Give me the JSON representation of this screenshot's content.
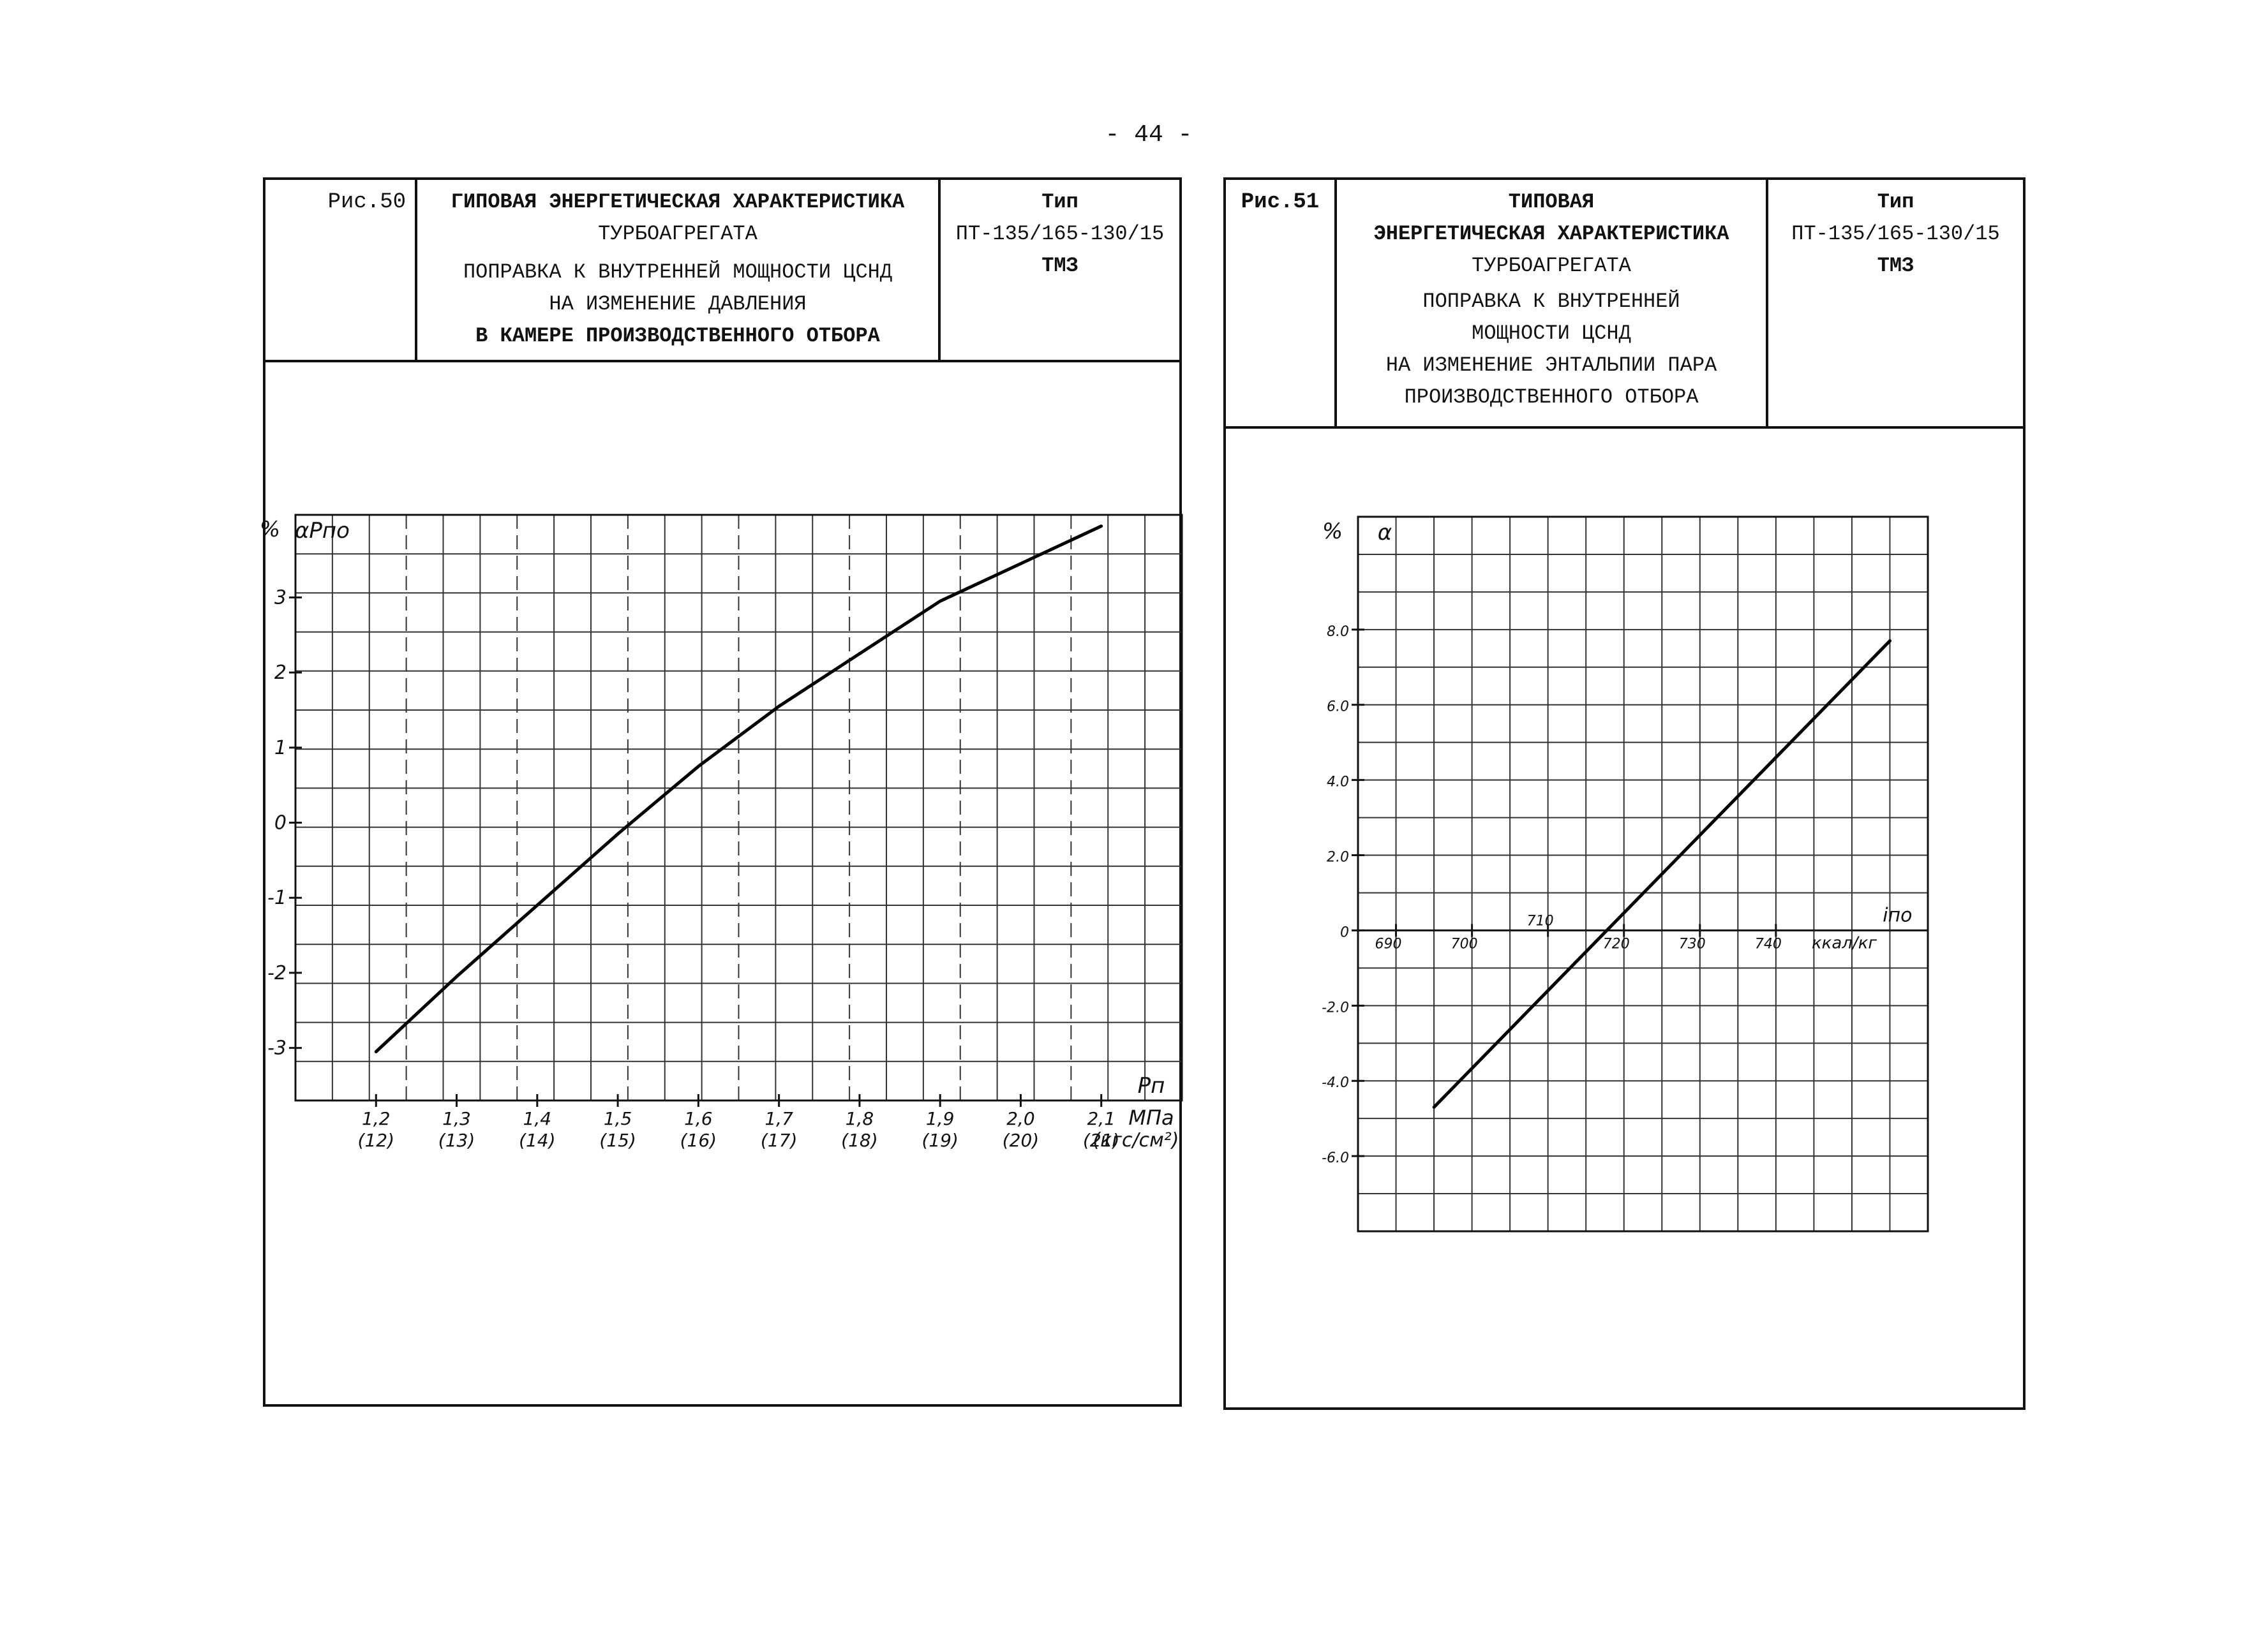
{
  "page": {
    "number": "- 44 -"
  },
  "figures": [
    {
      "fig_label": "Рис.50",
      "title_lines": [
        "ГИПОВАЯ ЭНЕРГЕТИЧЕСКАЯ ХАРАКТЕРИСТИКА",
        "ТУРБОАГРЕГАТА"
      ],
      "subtitle_lines": [
        "ПОПРАВКА К ВНУТРЕННЕЙ МОЩНОСТИ ЦСНД",
        "НА ИЗМЕНЕНИЕ ДАВЛЕНИЯ",
        "В КАМЕРЕ ПРОИЗВОДСТВЕННОГО ОТБОРА"
      ],
      "type_lines": [
        "Тип",
        "ПТ-135/165-130/15",
        "ТМЗ"
      ]
    },
    {
      "fig_label": "Рис.51",
      "title_lines": [
        "ТИПОВАЯ",
        "ЭНЕРГЕТИЧЕСКАЯ ХАРАКТЕРИСТИКА",
        "ТУРБОАГРЕГАТА"
      ],
      "subtitle_lines": [
        "ПОПРАВКА К ВНУТРЕННЕЙ",
        "МОЩНОСТИ ЦСНД",
        "НА ИЗМЕНЕНИЕ ЭНТАЛЬПИИ ПАРА",
        "ПРОИЗВОДСТВЕННОГО ОТБОРА"
      ],
      "type_lines": [
        "Тип",
        "ПТ-135/165-130/15",
        "ТМЗ"
      ]
    }
  ],
  "chart_data": [
    {
      "type": "line",
      "ylabel_unit": "%",
      "ylabel": "αPпо",
      "xlabel": "Pп",
      "x_unit": "МПа",
      "x_unit_alt": "(кгс/см²)",
      "xlim": [
        1.1,
        2.2
      ],
      "ylim": [
        -3.7,
        4.1
      ],
      "x_ticks": [
        1.2,
        1.3,
        1.4,
        1.5,
        1.6,
        1.7,
        1.8,
        1.9,
        2.0,
        2.1
      ],
      "x_tick_labels": [
        "1,2",
        "1,3",
        "1,4",
        "1,5",
        "1,6",
        "1,7",
        "1,8",
        "1,9",
        "2,0",
        "2,1"
      ],
      "x_tick_labels_alt": [
        "(12)",
        "(13)",
        "(14)",
        "(15)",
        "(16)",
        "(17)",
        "(18)",
        "(19)",
        "(20)",
        "(21)"
      ],
      "y_ticks": [
        3,
        2,
        1,
        0,
        -1,
        -2,
        -3
      ],
      "y_tick_labels": [
        "3",
        "2",
        "1",
        "0",
        "-1",
        "-2",
        "-3"
      ],
      "grid": true,
      "series": [
        {
          "x": [
            1.2,
            1.3,
            1.4,
            1.5,
            1.6,
            1.7,
            1.8,
            1.9,
            2.0,
            2.1
          ],
          "y": [
            -3.05,
            -2.05,
            -1.1,
            -0.15,
            0.75,
            1.55,
            2.25,
            2.95,
            3.45,
            3.95
          ]
        }
      ]
    },
    {
      "type": "line",
      "ylabel_unit": "%",
      "ylabel": "α",
      "xlabel": "iпо",
      "x_unit": "ккал/кг",
      "xlim": [
        685,
        760
      ],
      "ylim": [
        -8.0,
        11.0
      ],
      "x_ticks": [
        690,
        700,
        710,
        720,
        730,
        740
      ],
      "x_tick_labels": [
        "690",
        "700",
        "710",
        "720",
        "730",
        "740"
      ],
      "y_ticks": [
        8.0,
        6.0,
        4.0,
        2.0,
        0,
        -2.0,
        -4.0,
        -6.0
      ],
      "y_tick_labels": [
        "8.0",
        "6.0",
        "4.0",
        "2.0",
        "0",
        "-2.0",
        "-4.0",
        "-6.0"
      ],
      "grid": true,
      "series": [
        {
          "x": [
            695,
            755
          ],
          "y": [
            -4.7,
            7.7
          ]
        }
      ]
    }
  ]
}
